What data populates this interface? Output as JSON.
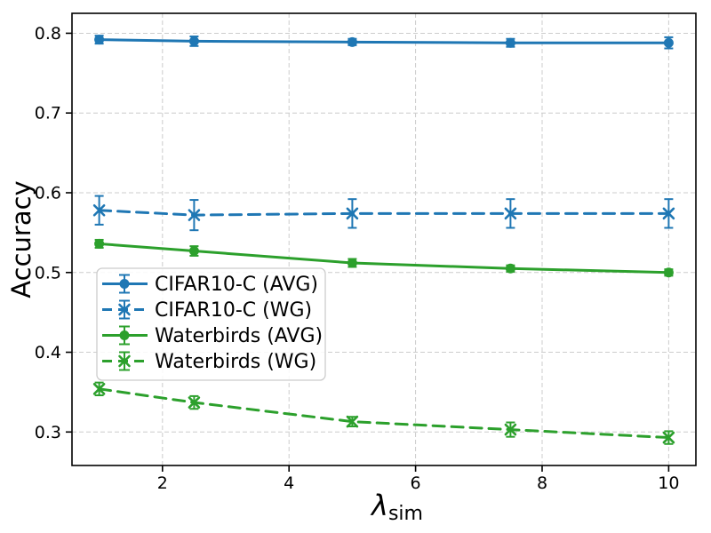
{
  "figure": {
    "background": "#ffffff",
    "plot_background": "#ffffff",
    "spine_color": "#000000",
    "grid_color": "#cccccc",
    "legend_border_color": "#cccccc",
    "legend_background": "#ffffff"
  },
  "chart_data": {
    "type": "line",
    "title": "",
    "xlabel": {
      "symbol": "λ",
      "subscript": "sim"
    },
    "ylabel": "Accuracy",
    "x": [
      1,
      2.5,
      5,
      7.5,
      10
    ],
    "xticks": [
      2,
      4,
      6,
      8,
      10
    ],
    "yticks": [
      0.3,
      0.4,
      0.5,
      0.6,
      0.7,
      0.8
    ],
    "xlim": [
      0.57,
      10.43
    ],
    "ylim": [
      0.258,
      0.825
    ],
    "grid": true,
    "legend_position": "lower-left",
    "series": [
      {
        "name": "CIFAR10-C (AVG)",
        "color": "#1f77b4",
        "linestyle": "solid",
        "marker": "circle",
        "values": [
          0.792,
          0.79,
          0.789,
          0.788,
          0.788
        ],
        "errors": [
          0.005,
          0.006,
          0.004,
          0.005,
          0.007
        ]
      },
      {
        "name": "CIFAR10-C (WG)",
        "color": "#1f77b4",
        "linestyle": "dashed",
        "marker": "x",
        "values": [
          0.578,
          0.572,
          0.574,
          0.574,
          0.574
        ],
        "errors": [
          0.018,
          0.019,
          0.018,
          0.018,
          0.018
        ]
      },
      {
        "name": "Waterbirds (AVG)",
        "color": "#2ca02c",
        "linestyle": "solid",
        "marker": "circle",
        "values": [
          0.536,
          0.527,
          0.512,
          0.505,
          0.5
        ],
        "errors": [
          0.005,
          0.006,
          0.005,
          0.004,
          0.004
        ]
      },
      {
        "name": "Waterbirds (WG)",
        "color": "#2ca02c",
        "linestyle": "dashed",
        "marker": "x",
        "values": [
          0.354,
          0.337,
          0.313,
          0.303,
          0.293
        ],
        "errors": [
          0.008,
          0.008,
          0.006,
          0.009,
          0.008
        ]
      }
    ]
  }
}
